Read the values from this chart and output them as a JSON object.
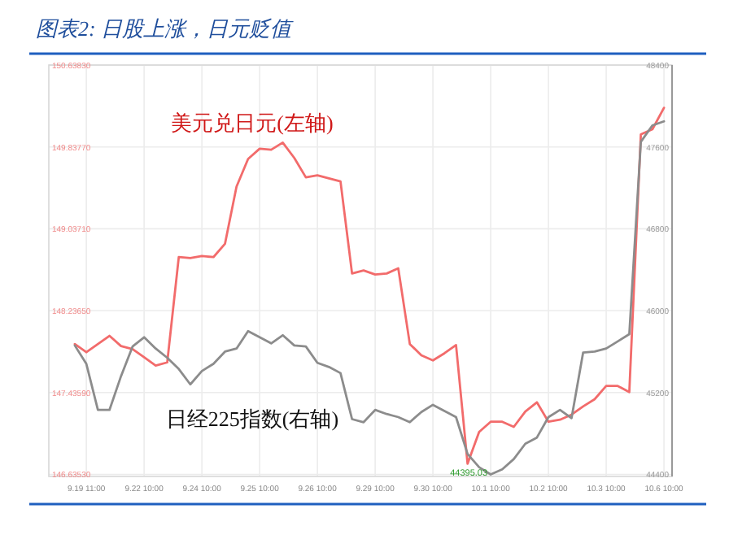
{
  "chart_data": {
    "type": "line",
    "title": "图表2:  日股上涨，日元贬值",
    "categories": [
      null,
      "9.19 11:00",
      null,
      null,
      null,
      null,
      "9.22 10:00",
      null,
      null,
      null,
      null,
      "9.24 10:00",
      null,
      null,
      null,
      null,
      "9.25 10:00",
      null,
      null,
      null,
      null,
      "9.26 10:00",
      null,
      null,
      null,
      null,
      "9.29 10:00",
      null,
      null,
      null,
      null,
      "9.30 10:00",
      null,
      null,
      null,
      null,
      "10.1 10:00",
      null,
      null,
      null,
      null,
      "10.2 10:00",
      null,
      null,
      null,
      null,
      "10.3 10:00",
      null,
      null,
      null,
      null,
      "10.6 10:00"
    ],
    "ylim": [
      146.615,
      150.6383
    ],
    "yticks": [
      {
        "value": 146.6353,
        "label": "146.63530"
      },
      {
        "value": 147.4359,
        "label": "147.43590"
      },
      {
        "value": 148.2365,
        "label": "148.23650"
      },
      {
        "value": 149.0371,
        "label": "149.03710"
      },
      {
        "value": 149.8377,
        "label": "149.83770"
      },
      {
        "value": 150.6383,
        "label": "150.63830"
      }
    ],
    "y2lim": [
      44380,
      48400
    ],
    "y2ticks": [
      44400,
      45200,
      46000,
      46800,
      47600,
      48400
    ],
    "grid": true,
    "legend": false,
    "annotations": [
      "44395.03"
    ],
    "series": [
      {
        "name": "美元兑日元(左轴)",
        "color": "#f26b6b",
        "values": [
          147.91,
          147.83,
          147.91,
          147.99,
          147.89,
          147.86,
          147.78,
          147.7,
          147.73,
          148.76,
          148.75,
          148.77,
          148.76,
          148.89,
          149.45,
          149.72,
          149.82,
          149.81,
          149.88,
          149.73,
          149.54,
          149.56,
          149.53,
          149.5,
          148.6,
          148.63,
          148.59,
          148.6,
          148.65,
          147.91,
          147.8,
          147.75,
          147.82,
          147.9,
          146.74,
          147.05,
          147.15,
          147.15,
          147.1,
          147.25,
          147.34,
          147.15,
          147.17,
          147.22,
          147.3,
          147.37,
          147.5,
          147.5,
          147.44,
          149.96,
          150.01,
          150.22
        ]
      },
      {
        "name": "日经225指数(右轴)",
        "color": "#8c8c8c",
        "axis": "y2",
        "values": [
          45660,
          45480,
          45030,
          45030,
          45360,
          45650,
          45740,
          45630,
          45540,
          45430,
          45280,
          45410,
          45480,
          45600,
          45630,
          45800,
          45740,
          45680,
          45760,
          45660,
          45650,
          45490,
          45450,
          45390,
          44940,
          44910,
          45030,
          44990,
          44960,
          44910,
          45010,
          45080,
          45020,
          44960,
          44600,
          44470,
          44400,
          44450,
          44550,
          44700,
          44760,
          44960,
          45030,
          44950,
          45590,
          45600,
          45630,
          45700,
          45770,
          47650,
          47810,
          47850
        ]
      }
    ]
  }
}
